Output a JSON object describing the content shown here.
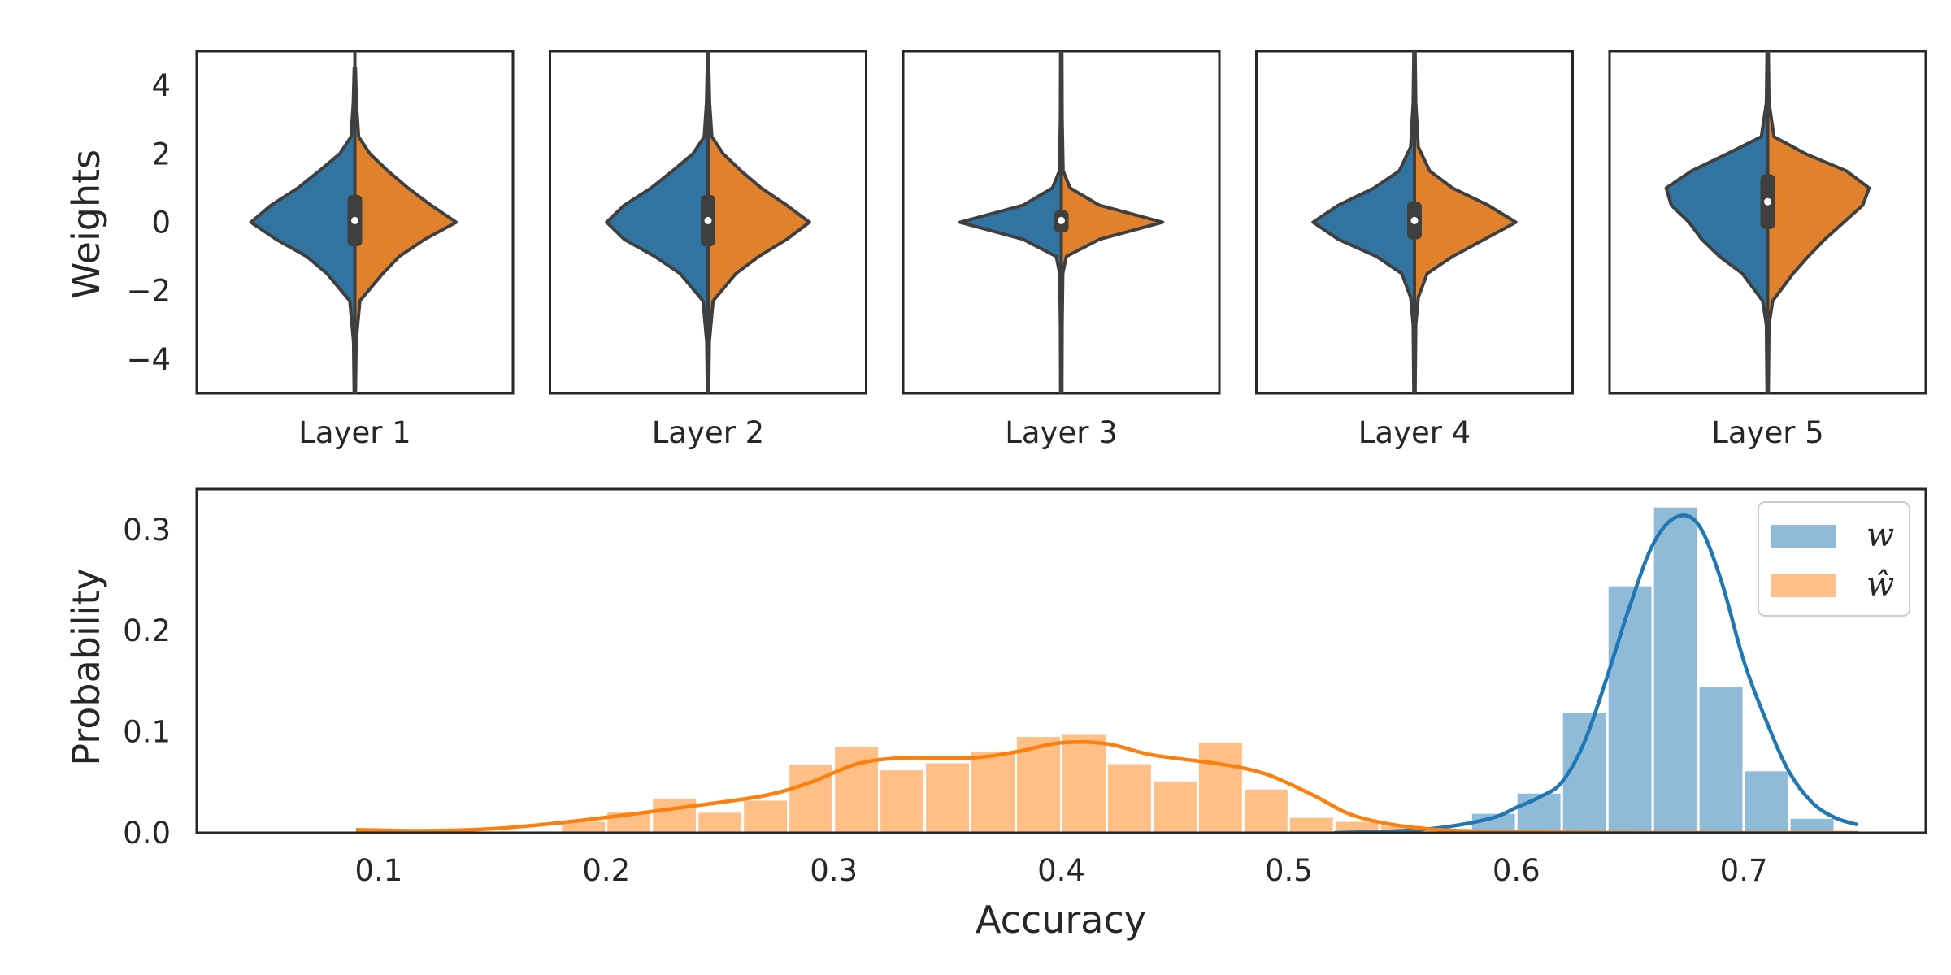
{
  "colors": {
    "w": "#1f77b4",
    "w_hat": "#ff7f0e",
    "w_violin": "#3274a1",
    "w_hat_violin": "#e1812c",
    "inner": "#3f3f3f",
    "frame": "#262626"
  },
  "chart_data": [
    {
      "type": "violin",
      "ylabel": "Weights",
      "ylim": [
        -5,
        5
      ],
      "yticks": [
        4,
        2,
        0,
        -2,
        -4
      ],
      "ytick_labels": [
        "4",
        "2",
        "0",
        "−2",
        "−4"
      ],
      "panels": [
        {
          "label": "Layer 1",
          "median": 0.05,
          "q1": -0.7,
          "q3": 0.8,
          "left": [
            [
              -5,
              0.005
            ],
            [
              -3.5,
              0.01
            ],
            [
              -2.3,
              0.04
            ],
            [
              -1.5,
              0.22
            ],
            [
              -1,
              0.38
            ],
            [
              -0.5,
              0.62
            ],
            [
              0,
              0.82
            ],
            [
              0.5,
              0.66
            ],
            [
              1,
              0.45
            ],
            [
              1.5,
              0.28
            ],
            [
              2,
              0.12
            ],
            [
              2.5,
              0.03
            ],
            [
              3.5,
              0.012
            ],
            [
              4.5,
              0.005
            ]
          ],
          "right": [
            [
              -5,
              0.005
            ],
            [
              -3.5,
              0.01
            ],
            [
              -2.3,
              0.04
            ],
            [
              -1.5,
              0.22
            ],
            [
              -1,
              0.35
            ],
            [
              -0.5,
              0.55
            ],
            [
              0,
              0.8
            ],
            [
              0.5,
              0.6
            ],
            [
              1,
              0.42
            ],
            [
              1.5,
              0.26
            ],
            [
              2,
              0.12
            ],
            [
              2.5,
              0.03
            ],
            [
              3.5,
              0.012
            ],
            [
              4.5,
              0.005
            ]
          ]
        },
        {
          "label": "Layer 2",
          "median": 0.05,
          "q1": -0.7,
          "q3": 0.8,
          "left": [
            [
              -5,
              0.005
            ],
            [
              -3.5,
              0.01
            ],
            [
              -2.3,
              0.04
            ],
            [
              -1.5,
              0.22
            ],
            [
              -1,
              0.42
            ],
            [
              -0.5,
              0.66
            ],
            [
              0,
              0.8
            ],
            [
              0.5,
              0.66
            ],
            [
              1,
              0.45
            ],
            [
              1.5,
              0.28
            ],
            [
              2,
              0.12
            ],
            [
              2.5,
              0.03
            ],
            [
              3.5,
              0.012
            ],
            [
              4.7,
              0.005
            ]
          ],
          "right": [
            [
              -5,
              0.005
            ],
            [
              -3.5,
              0.01
            ],
            [
              -2.3,
              0.04
            ],
            [
              -1.5,
              0.22
            ],
            [
              -1,
              0.4
            ],
            [
              -0.5,
              0.62
            ],
            [
              0,
              0.8
            ],
            [
              0.5,
              0.62
            ],
            [
              1,
              0.42
            ],
            [
              1.5,
              0.26
            ],
            [
              2,
              0.12
            ],
            [
              2.5,
              0.03
            ],
            [
              3.5,
              0.012
            ],
            [
              4.7,
              0.005
            ]
          ]
        },
        {
          "label": "Layer 3",
          "median": 0.05,
          "q1": -0.3,
          "q3": 0.35,
          "left": [
            [
              -5,
              0.005
            ],
            [
              -3,
              0.007
            ],
            [
              -1.5,
              0.012
            ],
            [
              -1,
              0.04
            ],
            [
              -0.5,
              0.3
            ],
            [
              0,
              0.8
            ],
            [
              0.5,
              0.3
            ],
            [
              1,
              0.07
            ],
            [
              1.5,
              0.015
            ],
            [
              3,
              0.007
            ],
            [
              5,
              0.005
            ]
          ],
          "right": [
            [
              -5,
              0.005
            ],
            [
              -3,
              0.007
            ],
            [
              -1.5,
              0.012
            ],
            [
              -1,
              0.04
            ],
            [
              -0.5,
              0.3
            ],
            [
              0,
              0.8
            ],
            [
              0.5,
              0.3
            ],
            [
              1,
              0.07
            ],
            [
              1.5,
              0.015
            ],
            [
              3,
              0.007
            ],
            [
              5,
              0.005
            ]
          ]
        },
        {
          "label": "Layer 4",
          "median": 0.05,
          "q1": -0.5,
          "q3": 0.6,
          "left": [
            [
              -5,
              0.005
            ],
            [
              -3,
              0.01
            ],
            [
              -2.2,
              0.03
            ],
            [
              -1.5,
              0.1
            ],
            [
              -1,
              0.3
            ],
            [
              -0.5,
              0.6
            ],
            [
              0,
              0.8
            ],
            [
              0.5,
              0.6
            ],
            [
              1,
              0.32
            ],
            [
              1.5,
              0.12
            ],
            [
              2.2,
              0.03
            ],
            [
              3.5,
              0.01
            ],
            [
              5,
              0.005
            ]
          ],
          "right": [
            [
              -5,
              0.005
            ],
            [
              -3,
              0.01
            ],
            [
              -2.2,
              0.03
            ],
            [
              -1.5,
              0.1
            ],
            [
              -1,
              0.3
            ],
            [
              -0.5,
              0.55
            ],
            [
              0,
              0.8
            ],
            [
              0.5,
              0.58
            ],
            [
              1,
              0.3
            ],
            [
              1.5,
              0.12
            ],
            [
              2.2,
              0.03
            ],
            [
              3.5,
              0.01
            ],
            [
              5,
              0.005
            ]
          ]
        },
        {
          "label": "Layer 5",
          "median": 0.6,
          "q1": -0.2,
          "q3": 1.4,
          "left": [
            [
              -5,
              0.005
            ],
            [
              -3,
              0.01
            ],
            [
              -2.3,
              0.04
            ],
            [
              -1.5,
              0.2
            ],
            [
              -1,
              0.38
            ],
            [
              -0.5,
              0.52
            ],
            [
              0,
              0.62
            ],
            [
              0.5,
              0.76
            ],
            [
              1,
              0.8
            ],
            [
              1.5,
              0.6
            ],
            [
              2,
              0.32
            ],
            [
              2.5,
              0.05
            ],
            [
              3.5,
              0.01
            ],
            [
              5,
              0.005
            ]
          ],
          "right": [
            [
              -5,
              0.005
            ],
            [
              -3,
              0.01
            ],
            [
              -2.3,
              0.04
            ],
            [
              -1.5,
              0.2
            ],
            [
              -1,
              0.32
            ],
            [
              -0.5,
              0.45
            ],
            [
              0,
              0.6
            ],
            [
              0.5,
              0.75
            ],
            [
              1,
              0.8
            ],
            [
              1.5,
              0.62
            ],
            [
              2,
              0.3
            ],
            [
              2.5,
              0.05
            ],
            [
              3.5,
              0.01
            ],
            [
              5,
              0.005
            ]
          ]
        }
      ]
    },
    {
      "type": "histogram",
      "xlabel": "Accuracy",
      "ylabel": "Probability",
      "xlim": [
        0.02,
        0.78
      ],
      "ylim": [
        0,
        0.34
      ],
      "xticks": [
        0.1,
        0.2,
        0.3,
        0.4,
        0.5,
        0.6,
        0.7
      ],
      "xtick_labels": [
        "0.1",
        "0.2",
        "0.3",
        "0.4",
        "0.5",
        "0.6",
        "0.7"
      ],
      "yticks": [
        0.0,
        0.1,
        0.2,
        0.3
      ],
      "ytick_labels": [
        "0.0",
        "0.1",
        "0.2",
        "0.3"
      ],
      "legend": {
        "position": "top-right"
      },
      "series": [
        {
          "name": "w",
          "bins": [
            [
              0.58,
              0.6,
              0.02
            ],
            [
              0.6,
              0.62,
              0.04
            ],
            [
              0.62,
              0.64,
              0.12
            ],
            [
              0.64,
              0.66,
              0.245
            ],
            [
              0.66,
              0.68,
              0.323
            ],
            [
              0.68,
              0.7,
              0.145
            ],
            [
              0.7,
              0.72,
              0.062
            ],
            [
              0.72,
              0.74,
              0.015
            ]
          ],
          "kde": [
            [
              0.52,
              0.0
            ],
            [
              0.55,
              0.002
            ],
            [
              0.57,
              0.006
            ],
            [
              0.59,
              0.015
            ],
            [
              0.6,
              0.025
            ],
            [
              0.61,
              0.035
            ],
            [
              0.62,
              0.05
            ],
            [
              0.63,
              0.09
            ],
            [
              0.64,
              0.155
            ],
            [
              0.65,
              0.225
            ],
            [
              0.66,
              0.285
            ],
            [
              0.67,
              0.312
            ],
            [
              0.68,
              0.305
            ],
            [
              0.69,
              0.25
            ],
            [
              0.7,
              0.17
            ],
            [
              0.71,
              0.11
            ],
            [
              0.72,
              0.06
            ],
            [
              0.73,
              0.03
            ],
            [
              0.74,
              0.015
            ],
            [
              0.75,
              0.008
            ]
          ]
        },
        {
          "name": "ŵ",
          "bins": [
            [
              0.18,
              0.2,
              0.012
            ],
            [
              0.2,
              0.22,
              0.022
            ],
            [
              0.22,
              0.24,
              0.035
            ],
            [
              0.24,
              0.26,
              0.021
            ],
            [
              0.26,
              0.28,
              0.033
            ],
            [
              0.28,
              0.3,
              0.068
            ],
            [
              0.3,
              0.32,
              0.086
            ],
            [
              0.32,
              0.34,
              0.063
            ],
            [
              0.34,
              0.36,
              0.07
            ],
            [
              0.36,
              0.38,
              0.081
            ],
            [
              0.38,
              0.4,
              0.096
            ],
            [
              0.4,
              0.42,
              0.098
            ],
            [
              0.42,
              0.44,
              0.069
            ],
            [
              0.44,
              0.46,
              0.052
            ],
            [
              0.46,
              0.48,
              0.09
            ],
            [
              0.48,
              0.5,
              0.044
            ],
            [
              0.5,
              0.52,
              0.016
            ],
            [
              0.52,
              0.54,
              0.012
            ],
            [
              0.54,
              0.56,
              0.008
            ],
            [
              0.56,
              0.58,
              0.005
            ]
          ],
          "kde": [
            [
              0.09,
              0.003
            ],
            [
              0.12,
              0.002
            ],
            [
              0.15,
              0.004
            ],
            [
              0.18,
              0.01
            ],
            [
              0.21,
              0.018
            ],
            [
              0.24,
              0.027
            ],
            [
              0.27,
              0.037
            ],
            [
              0.29,
              0.05
            ],
            [
              0.31,
              0.068
            ],
            [
              0.33,
              0.074
            ],
            [
              0.36,
              0.074
            ],
            [
              0.38,
              0.08
            ],
            [
              0.4,
              0.089
            ],
            [
              0.42,
              0.088
            ],
            [
              0.44,
              0.077
            ],
            [
              0.47,
              0.068
            ],
            [
              0.49,
              0.058
            ],
            [
              0.51,
              0.038
            ],
            [
              0.53,
              0.016
            ],
            [
              0.56,
              0.004
            ],
            [
              0.6,
              0.001
            ],
            [
              0.65,
              0.0
            ],
            [
              0.75,
              0.0
            ]
          ]
        }
      ]
    }
  ]
}
